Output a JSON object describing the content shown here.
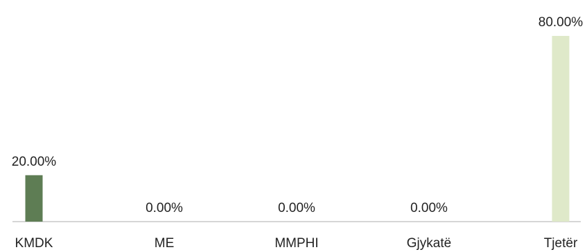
{
  "chart_data": {
    "type": "bar",
    "categories": [
      "KMDK",
      "ME",
      "MMPHI",
      "Gjykatë",
      "Tjetër"
    ],
    "values": [
      20.0,
      0.0,
      0.0,
      0.0,
      80.0
    ],
    "data_labels": [
      "20.00%",
      "0.00%",
      "0.00%",
      "0.00%",
      "80.00%"
    ],
    "ylim": [
      0,
      80
    ],
    "grid": false,
    "legend": "none",
    "colors": [
      "#5e7d54",
      "#c9d9a8",
      "#c9d9a8",
      "#c9d9a8",
      "#dfe9c9"
    ],
    "axis_color": "#c8c8c8"
  }
}
